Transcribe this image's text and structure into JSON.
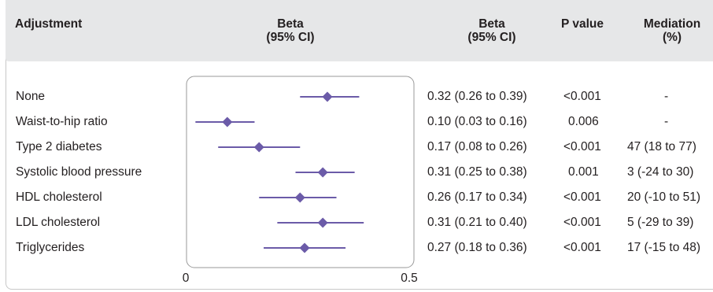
{
  "header": {
    "adjustment": "Adjustment",
    "beta_plot_line1": "Beta",
    "beta_plot_line2": "(95% CI)",
    "beta_line1": "Beta",
    "beta_line2": "(95% CI)",
    "pvalue": "P value",
    "mediation_line1": "Mediation",
    "mediation_line2": "(%)"
  },
  "rows": [
    {
      "label": "None",
      "beta_text": "0.32 (0.26 to 0.39)",
      "p": "<0.001",
      "mediation": "-"
    },
    {
      "label": "Waist-to-hip ratio",
      "beta_text": "0.10 (0.03 to 0.16)",
      "p": "0.006",
      "mediation": "-"
    },
    {
      "label": "Type 2 diabetes",
      "beta_text": "0.17 (0.08 to 0.26)",
      "p": "<0.001",
      "mediation": "47 (18 to 77)"
    },
    {
      "label": "Systolic blood pressure",
      "beta_text": "0.31 (0.25 to 0.38)",
      "p": "0.001",
      "mediation": "3 (-24 to 30)"
    },
    {
      "label": "HDL cholesterol",
      "beta_text": "0.26 (0.17 to 0.34)",
      "p": "<0.001",
      "mediation": "20 (-10 to 51)"
    },
    {
      "label": "LDL cholesterol",
      "beta_text": "0.31 (0.21 to 0.40)",
      "p": "<0.001",
      "mediation": "5 (-29 to 39)"
    },
    {
      "label": "Triglycerides",
      "beta_text": "0.27 (0.18 to 0.36)",
      "p": "<0.001",
      "mediation": "17 (-15 to 48)"
    }
  ],
  "axis": {
    "tick_min": "0",
    "tick_max": "0.5"
  },
  "colors": {
    "marker": "#6b5ba8",
    "header_bg": "#e6e7e8",
    "text": "#231f20",
    "panel_border": "#9a9a9a"
  },
  "chart_data": {
    "type": "forest",
    "xlim": [
      0,
      0.5
    ],
    "xticks": [
      "0",
      "0.5"
    ],
    "categories": [
      "None",
      "Waist-to-hip ratio",
      "Type 2 diabetes",
      "Systolic blood pressure",
      "HDL cholesterol",
      "LDL cholesterol",
      "Triglycerides"
    ],
    "estimates": [
      0.32,
      0.1,
      0.17,
      0.31,
      0.26,
      0.31,
      0.27
    ],
    "lower": [
      0.26,
      0.03,
      0.08,
      0.25,
      0.17,
      0.21,
      0.18
    ],
    "upper": [
      0.39,
      0.16,
      0.26,
      0.38,
      0.34,
      0.4,
      0.36
    ],
    "grid": false
  }
}
